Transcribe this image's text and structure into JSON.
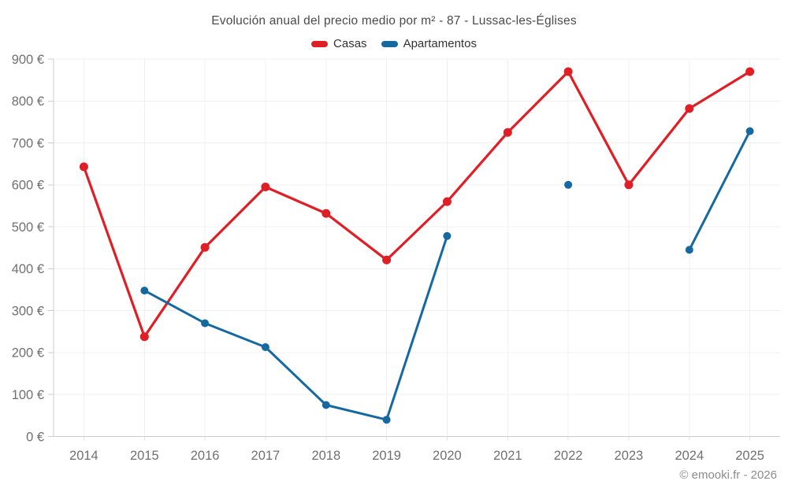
{
  "title": "Evolución anual del precio medio por m² - 87 - Lussac-les-Églises",
  "legend": [
    {
      "label": "Casas",
      "color": "#e01e25"
    },
    {
      "label": "Apartamentos",
      "color": "#1569a0"
    }
  ],
  "footer": "© emooki.fr - 2026",
  "chart_data": {
    "type": "line",
    "title": "Evolución anual del precio medio por m² - 87 - Lussac-les-Églises",
    "categories": [
      "2014",
      "2015",
      "2016",
      "2017",
      "2018",
      "2019",
      "2020",
      "2021",
      "2022",
      "2023",
      "2024",
      "2025"
    ],
    "series": [
      {
        "name": "Casas",
        "color": "#e01e25",
        "marker_radius": 5.5,
        "line_width": 3.2,
        "values": [
          643,
          238,
          451,
          595,
          532,
          421,
          560,
          725,
          870,
          600,
          782,
          870
        ]
      },
      {
        "name": "Apartamentos",
        "color": "#1569a0",
        "marker_radius": 5,
        "line_width": 3,
        "values": [
          null,
          348,
          270,
          213,
          75,
          40,
          478,
          null,
          600,
          null,
          445,
          728
        ]
      }
    ],
    "xlabel": "",
    "ylabel": "",
    "ylim": [
      0,
      900
    ],
    "ytick_step": 100,
    "ytick_labels": [
      "0 €",
      "100 €",
      "200 €",
      "300 €",
      "400 €",
      "500 €",
      "600 €",
      "700 €",
      "800 €",
      "900 €"
    ],
    "grid": true,
    "legend_position": "top",
    "grid_color": "#f0f0f0",
    "axis_color": "#cccccc",
    "tick_label_color": "#707070"
  }
}
